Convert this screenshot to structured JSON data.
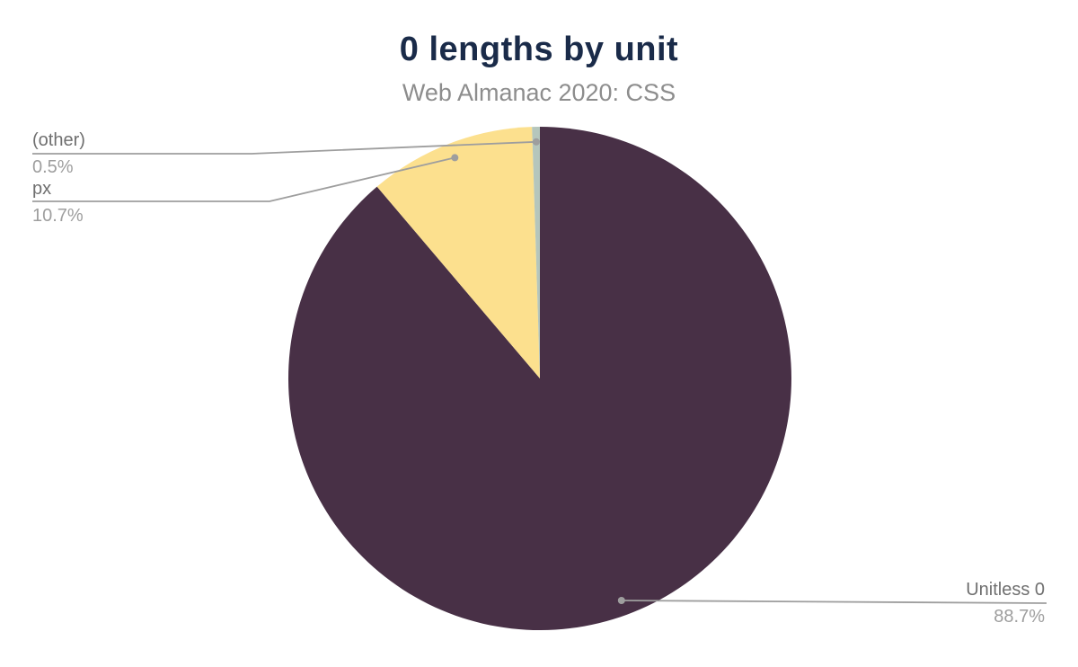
{
  "chart": {
    "title": "0 lengths by unit",
    "subtitle": "Web Almanac 2020: CSS"
  },
  "chart_data": {
    "type": "pie",
    "title": "0 lengths by unit",
    "subtitle": "Web Almanac 2020: CSS",
    "start_angle_deg": 0,
    "direction": "clockwise",
    "legend_position": "none",
    "annotation_style": "callout-leader-lines",
    "slices": [
      {
        "label": "Unitless 0",
        "value": 88.7,
        "pct_label": "88.7%",
        "color": "#483046"
      },
      {
        "label": "px",
        "value": 10.7,
        "pct_label": "10.7%",
        "color": "#fce08e"
      },
      {
        "label": "(other)",
        "value": 0.5,
        "pct_label": "0.5%",
        "color": "#b5c6bc"
      }
    ]
  },
  "colors": {
    "background": "#ffffff",
    "title": "#1a2b49",
    "subtitle": "#8d8d8d",
    "callout_label": "#6f6f6f",
    "callout_percent": "#9e9e9e",
    "leader_line": "#9e9e9e",
    "leader_dot": "#9e9e9e"
  }
}
